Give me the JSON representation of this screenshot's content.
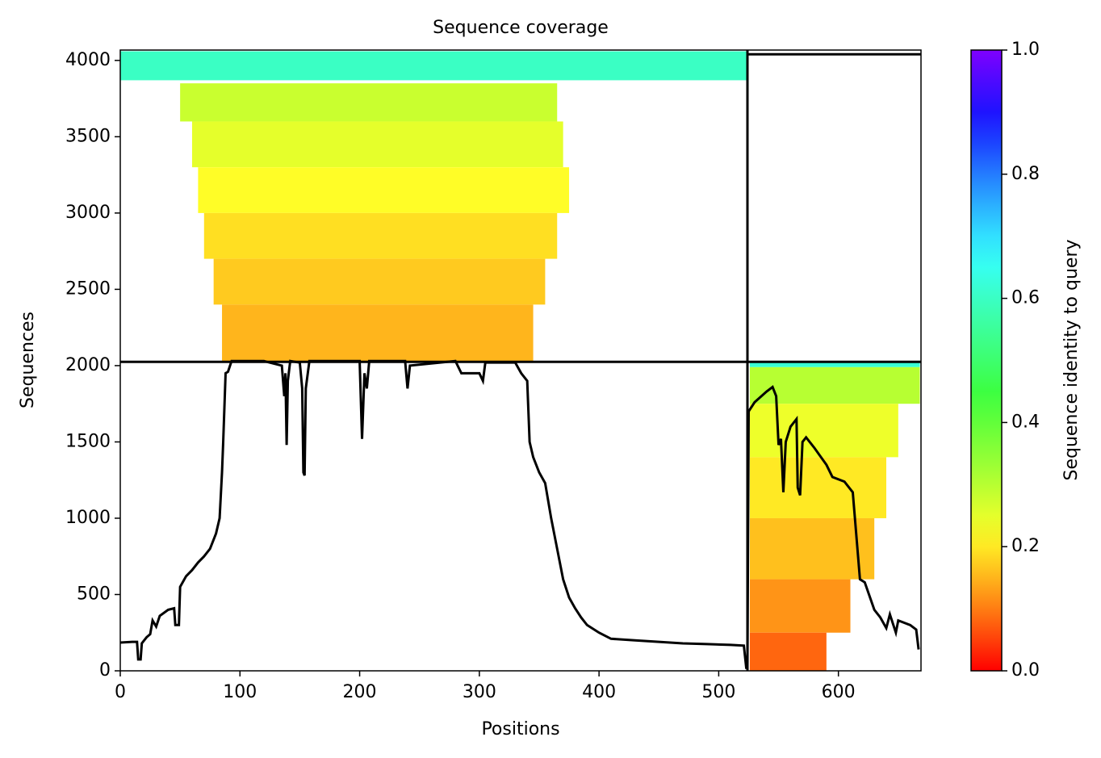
{
  "chart_data": {
    "type": "coverage",
    "title": "Sequence coverage",
    "xlabel": "Positions",
    "ylabel": "Sequences",
    "colorbar_label": "Sequence identity to query",
    "xlim": [
      0,
      669
    ],
    "ylim": [
      0,
      4068
    ],
    "xticks": [
      0,
      100,
      200,
      300,
      400,
      500,
      600
    ],
    "yticks": [
      0,
      500,
      1000,
      1500,
      2000,
      2500,
      3000,
      3500,
      4000
    ],
    "clim": [
      0,
      1
    ],
    "cticks": [
      {
        "value": 0,
        "label": "0.0"
      },
      {
        "value": 0.2,
        "label": "0.2"
      },
      {
        "value": 0.4,
        "label": "0.4"
      },
      {
        "value": 0.6,
        "label": "0.6"
      },
      {
        "value": 0.8,
        "label": "0.8"
      },
      {
        "value": 1,
        "label": "1.0"
      }
    ],
    "line_color": "#000000",
    "boundaries": {
      "x": [
        524
      ],
      "y": [
        2025,
        4040
      ]
    },
    "bands": [
      {
        "x": [
          0,
          524
        ],
        "y": [
          3870,
          4060
        ],
        "identity": 0.6
      },
      {
        "x": [
          50,
          365
        ],
        "y": [
          3600,
          3850
        ],
        "identity": 0.28
      },
      {
        "x": [
          60,
          370
        ],
        "y": [
          3300,
          3600
        ],
        "identity": 0.25
      },
      {
        "x": [
          65,
          375
        ],
        "y": [
          3000,
          3300
        ],
        "identity": 0.22
      },
      {
        "x": [
          70,
          365
        ],
        "y": [
          2700,
          3000
        ],
        "identity": 0.19
      },
      {
        "x": [
          78,
          355
        ],
        "y": [
          2400,
          2700
        ],
        "identity": 0.17
      },
      {
        "x": [
          85,
          345
        ],
        "y": [
          2025,
          2400
        ],
        "identity": 0.15
      },
      {
        "x": [
          526,
          668
        ],
        "y": [
          1990,
          2025
        ],
        "identity": 0.62
      },
      {
        "x": [
          526,
          668
        ],
        "y": [
          1750,
          1990
        ],
        "identity": 0.3
      },
      {
        "x": [
          526,
          650
        ],
        "y": [
          1400,
          1750
        ],
        "identity": 0.24
      },
      {
        "x": [
          526,
          640
        ],
        "y": [
          1000,
          1400
        ],
        "identity": 0.2
      },
      {
        "x": [
          526,
          630
        ],
        "y": [
          600,
          1000
        ],
        "identity": 0.16
      },
      {
        "x": [
          526,
          610
        ],
        "y": [
          250,
          600
        ],
        "identity": 0.12
      },
      {
        "x": [
          526,
          590
        ],
        "y": [
          0,
          250
        ],
        "identity": 0.08
      }
    ],
    "x": [
      0,
      10,
      14,
      15,
      17,
      18,
      22,
      25,
      27,
      30,
      33,
      40,
      45,
      46,
      49,
      50,
      55,
      60,
      65,
      70,
      75,
      80,
      83,
      85,
      86,
      88,
      90,
      93,
      100,
      120,
      125,
      135,
      137,
      138,
      139,
      140,
      142,
      150,
      152,
      153,
      154,
      155,
      158,
      170,
      200,
      202,
      204,
      206,
      208,
      238,
      240,
      242,
      280,
      285,
      300,
      303,
      305,
      330,
      335,
      340,
      342,
      345,
      350,
      355,
      360,
      365,
      370,
      375,
      380,
      385,
      390,
      400,
      410,
      430,
      450,
      470,
      490,
      510,
      521,
      523,
      524,
      525,
      530,
      540,
      545,
      548,
      550,
      552,
      554,
      556,
      560,
      565,
      566,
      568,
      570,
      573,
      580,
      590,
      595,
      605,
      612,
      618,
      622,
      630,
      635,
      640,
      643,
      648,
      650,
      660,
      665,
      667
    ],
    "values": [
      185,
      190,
      190,
      75,
      75,
      180,
      220,
      240,
      330,
      290,
      360,
      400,
      410,
      300,
      300,
      550,
      620,
      660,
      710,
      750,
      800,
      900,
      1000,
      1300,
      1500,
      1950,
      1960,
      2030,
      2030,
      2030,
      2020,
      2000,
      1800,
      1950,
      1480,
      1900,
      2030,
      2020,
      1850,
      1300,
      1280,
      1850,
      2030,
      2030,
      2030,
      1520,
      1950,
      1850,
      2030,
      2030,
      1850,
      2000,
      2030,
      1950,
      1950,
      1900,
      2020,
      2020,
      1950,
      1900,
      1500,
      1400,
      1300,
      1230,
      1000,
      800,
      600,
      480,
      410,
      350,
      300,
      250,
      210,
      200,
      190,
      180,
      175,
      170,
      165,
      20,
      20,
      1700,
      1760,
      1830,
      1860,
      1800,
      1480,
      1520,
      1170,
      1500,
      1600,
      1650,
      1200,
      1150,
      1500,
      1530,
      1460,
      1350,
      1270,
      1240,
      1170,
      600,
      580,
      400,
      350,
      280,
      370,
      250,
      330,
      300,
      270,
      140
    ]
  }
}
